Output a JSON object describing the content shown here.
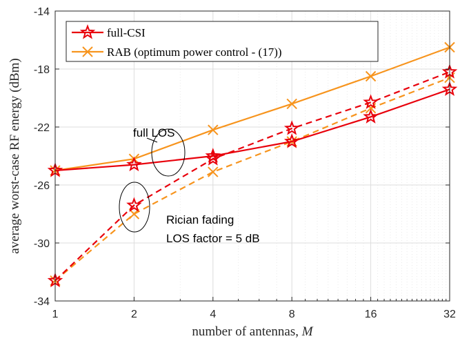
{
  "chart_data": {
    "type": "line",
    "xlabel": "number of antennas, M",
    "ylabel": "average worst-case RF energy (dBm)",
    "x_scale": "log2",
    "x": [
      1,
      2,
      4,
      8,
      16,
      32
    ],
    "x_tick_labels": [
      "1",
      "2",
      "4",
      "8",
      "16",
      "32"
    ],
    "xlim": [
      1,
      32
    ],
    "ylim": [
      -34,
      -14
    ],
    "y_ticks": [
      -34,
      -30,
      -26,
      -22,
      -18,
      -14
    ],
    "grid": true,
    "legend_placement": "top-left",
    "series": [
      {
        "name": "full-CSI",
        "color": "#e8000b",
        "marker": "star",
        "line": "solid",
        "scenario": "full LOS",
        "values": [
          -25.0,
          -24.6,
          -24.0,
          -23.0,
          -21.3,
          -19.4
        ]
      },
      {
        "name": "RAB (optimum power control - (17))",
        "color": "#f7941d",
        "marker": "x",
        "line": "solid",
        "scenario": "full LOS",
        "values": [
          -25.0,
          -24.2,
          -22.2,
          -20.4,
          -18.5,
          -16.5
        ]
      },
      {
        "name": "",
        "color": "#e8000b",
        "marker": "star",
        "line": "dashed",
        "scenario": "Rician fading",
        "values": [
          -32.6,
          -27.4,
          -24.2,
          -22.1,
          -20.3,
          -18.2
        ]
      },
      {
        "name": "",
        "color": "#f7941d",
        "marker": "x",
        "line": "dashed",
        "scenario": "Rician fading",
        "values": [
          -32.6,
          -28.0,
          -25.1,
          -23.0,
          -20.7,
          -18.6
        ]
      }
    ],
    "annotations": [
      {
        "text": "full LOS"
      },
      {
        "text_lines": [
          "Rician fading",
          "LOS factor = 5 dB"
        ]
      }
    ]
  }
}
